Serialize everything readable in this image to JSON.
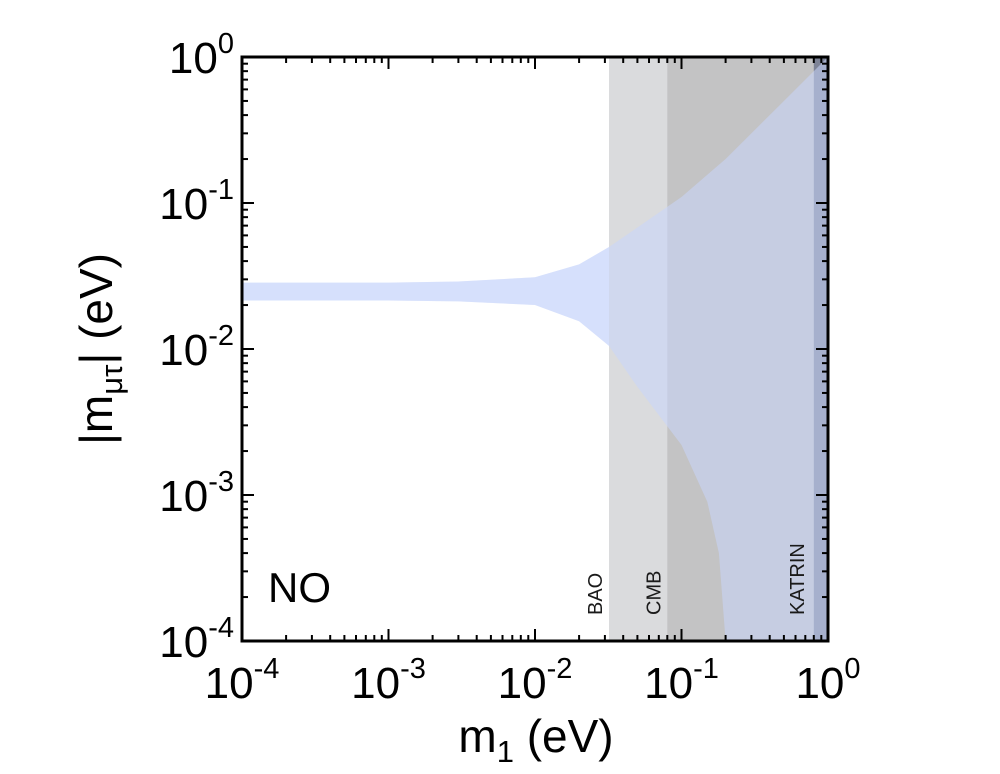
{
  "chart_data": {
    "type": "area",
    "x_scale": "log",
    "y_scale": "log",
    "xlim": [
      0.0001,
      1
    ],
    "ylim": [
      0.0001,
      1
    ],
    "x_ticks": [
      {
        "base": "10",
        "exp": "-4",
        "value": 0.0001
      },
      {
        "base": "10",
        "exp": "-3",
        "value": 0.001
      },
      {
        "base": "10",
        "exp": "-2",
        "value": 0.01
      },
      {
        "base": "10",
        "exp": "-1",
        "value": 0.1
      },
      {
        "base": "10",
        "exp": "0",
        "value": 1
      }
    ],
    "y_ticks": [
      {
        "base": "10",
        "exp": "0",
        "value": 1
      },
      {
        "base": "10",
        "exp": "-1",
        "value": 0.1
      },
      {
        "base": "10",
        "exp": "-2",
        "value": 0.01
      },
      {
        "base": "10",
        "exp": "-3",
        "value": 0.001
      },
      {
        "base": "10",
        "exp": "-4",
        "value": 0.0001
      }
    ],
    "xlabel": {
      "main": "m",
      "sub": "1",
      "tail": " (eV)"
    },
    "ylabel": {
      "pre": "|m",
      "sub": "μτ",
      "tail": "| (eV)"
    },
    "annotation": "NO",
    "exclusion_bands": [
      {
        "label": "BAO",
        "x_start": 0.032,
        "x_end": 1,
        "color": "#dadbdd"
      },
      {
        "label": "CMB",
        "x_start": 0.08,
        "x_end": 1,
        "color": "#c3c3c4"
      },
      {
        "label": "KATRIN",
        "x_start": 0.8,
        "x_end": 1,
        "color": "#7d8396"
      }
    ],
    "allowed_region": {
      "color": "#c9d6fb",
      "opacity": 0.55,
      "upper": [
        [
          0.0001,
          0.0285
        ],
        [
          0.001,
          0.0285
        ],
        [
          0.003,
          0.029
        ],
        [
          0.01,
          0.031
        ],
        [
          0.02,
          0.038
        ],
        [
          0.032,
          0.05
        ],
        [
          0.05,
          0.068
        ],
        [
          0.1,
          0.11
        ],
        [
          0.2,
          0.2
        ],
        [
          0.5,
          0.5
        ],
        [
          1,
          1
        ]
      ],
      "lower": [
        [
          0.0001,
          0.0215
        ],
        [
          0.001,
          0.0215
        ],
        [
          0.003,
          0.0212
        ],
        [
          0.01,
          0.02
        ],
        [
          0.02,
          0.0155
        ],
        [
          0.032,
          0.0105
        ],
        [
          0.05,
          0.0055
        ],
        [
          0.1,
          0.0022
        ],
        [
          0.15,
          0.0009
        ],
        [
          0.18,
          0.0004
        ],
        [
          0.2,
          0.0001
        ]
      ]
    }
  }
}
